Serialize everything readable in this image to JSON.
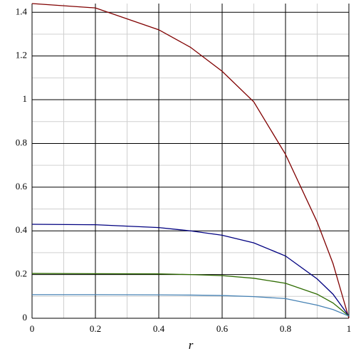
{
  "chart_data": {
    "type": "line",
    "xlabel": "r",
    "x": [
      0,
      0.2,
      0.4,
      0.5,
      0.6,
      0.7,
      0.8,
      0.9,
      0.95,
      1
    ],
    "series": [
      {
        "color": "#800000",
        "values": [
          1.44,
          1.42,
          1.32,
          1.24,
          1.13,
          0.99,
          0.75,
          0.44,
          0.25,
          0
        ]
      },
      {
        "color": "#000080",
        "values": [
          0.43,
          0.428,
          0.415,
          0.4,
          0.38,
          0.345,
          0.285,
          0.18,
          0.11,
          0.01
        ]
      },
      {
        "color": "#2e6b00",
        "values": [
          0.205,
          0.204,
          0.203,
          0.2,
          0.195,
          0.183,
          0.16,
          0.11,
          0.07,
          0.01
        ]
      },
      {
        "color": "#4682b4",
        "values": [
          0.108,
          0.108,
          0.107,
          0.106,
          0.104,
          0.099,
          0.09,
          0.06,
          0.04,
          0.01
        ]
      }
    ],
    "xlim": [
      0,
      1
    ],
    "xticks": [
      0,
      0.2,
      0.4,
      0.6,
      0.8,
      1
    ],
    "ylim": [
      0,
      1.44
    ],
    "yticks": [
      0,
      0.2,
      0.4,
      0.6,
      0.8,
      1,
      1.2,
      1.4
    ],
    "grid": true
  }
}
